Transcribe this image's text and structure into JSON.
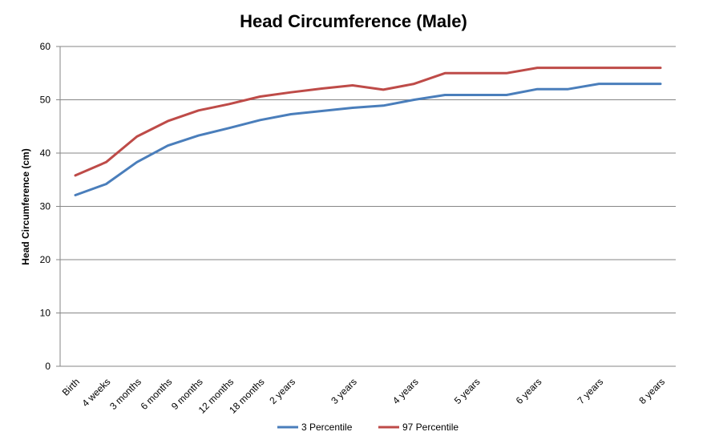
{
  "chart_data": {
    "type": "line",
    "title": "Head Circumference (Male)",
    "xlabel": "",
    "ylabel": "Head Circumference (cm)",
    "ylim": [
      0,
      60
    ],
    "yticks": [
      0,
      10,
      20,
      30,
      40,
      50,
      60
    ],
    "grid": true,
    "legend_position": "bottom",
    "categories": [
      "Birth",
      "4 weeks",
      "3 months",
      "6 months",
      "9 months",
      "12 months",
      "18 months",
      "2 years",
      "",
      "3 years",
      "",
      "4 years",
      "",
      "5 years",
      "",
      "6 years",
      "",
      "7 years",
      "",
      "8 years"
    ],
    "series": [
      {
        "name": "3 Percentile",
        "color": "#4a7ebb",
        "values": [
          32.1,
          34.2,
          38.3,
          41.4,
          43.3,
          44.7,
          46.2,
          47.3,
          47.9,
          48.5,
          48.9,
          50.0,
          50.9,
          50.9,
          50.9,
          52.0,
          52.0,
          53.0,
          53.0,
          53.0
        ]
      },
      {
        "name": "97 Percentile",
        "color": "#be4b48",
        "values": [
          35.8,
          38.3,
          43.1,
          46.0,
          48.0,
          49.2,
          50.6,
          51.4,
          52.1,
          52.7,
          51.9,
          53.0,
          55.0,
          55.0,
          55.0,
          56.0,
          56.0,
          56.0,
          56.0,
          56.0
        ]
      }
    ]
  }
}
